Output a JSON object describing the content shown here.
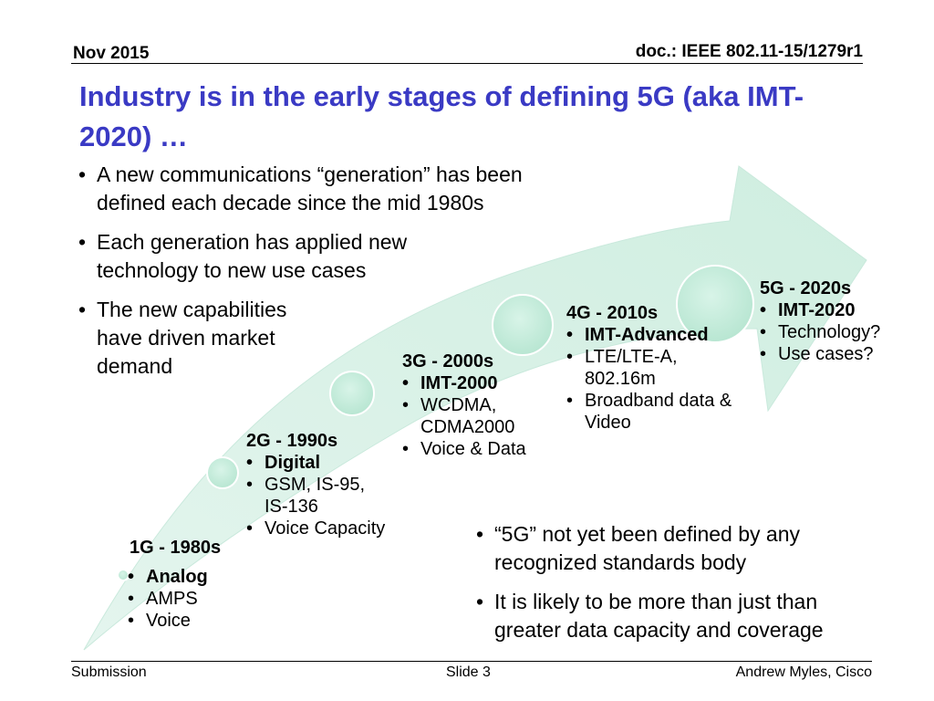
{
  "header": {
    "date": "Nov 2015",
    "doc_id": "doc.: IEEE 802.11-15/1279r1"
  },
  "title": "Industry is in the early stages of defining 5G (aka IMT-2020) …",
  "intro_bullets": [
    "A new communications “generation” has been defined each decade since the mid 1980s",
    "Each generation has applied new technology to new use cases",
    "The new capabilities have driven  market demand"
  ],
  "generations": [
    {
      "title": "1G  - 1980s",
      "items": [
        "Analog",
        "AMPS",
        "Voice"
      ]
    },
    {
      "title": "2G - 1990s",
      "items": [
        "Digital",
        "GSM, IS-95, IS-136",
        "Voice Capacity"
      ]
    },
    {
      "title": "3G - 2000s",
      "items": [
        "IMT-2000",
        "WCDMA, CDMA2000",
        "Voice & Data"
      ]
    },
    {
      "title": "4G - 2010s",
      "items": [
        "IMT-Advanced",
        "LTE/LTE-A, 802.16m",
        "Broadband data & Video"
      ]
    },
    {
      "title": "5G - 2020s",
      "items": [
        "IMT-2020",
        "Technology?",
        "Use cases?"
      ]
    }
  ],
  "note_bullets": [
    "“5G” not yet been defined by any recognized standards body",
    "It is likely to be more than just than greater data capacity and coverage"
  ],
  "footer": {
    "left": "Submission",
    "center": "Slide 3",
    "right": "Andrew Myles, Cisco"
  },
  "colors": {
    "title": "#3a3ac4",
    "arrow_fill": "#d8f0e6",
    "arrow_edge": "#c7e8da",
    "circle_fill": "#c6ecdc"
  }
}
